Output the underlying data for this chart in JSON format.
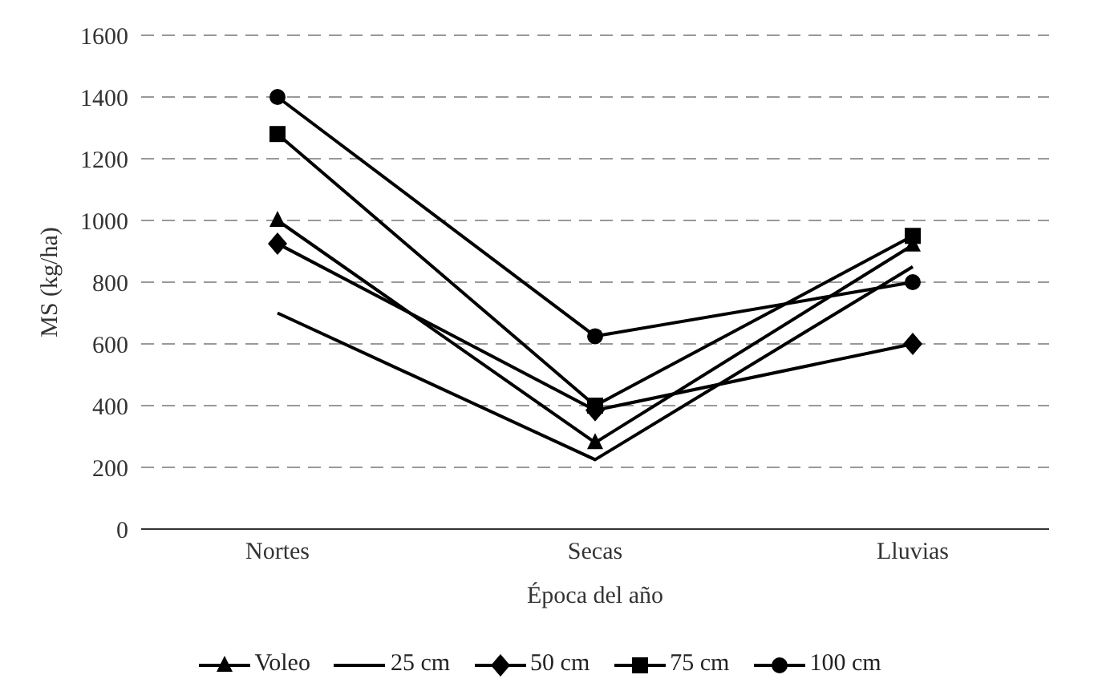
{
  "chart_data": {
    "type": "line",
    "xlabel": "Época del año",
    "ylabel": "MS (kg/ha)",
    "categories": [
      "Nortes",
      "Secas",
      "Lluvias"
    ],
    "ylim": [
      0,
      1600
    ],
    "yticks": [
      0,
      200,
      400,
      600,
      800,
      1000,
      1200,
      1400,
      1600
    ],
    "grid": "y",
    "legend": "bottom",
    "line_style": "solid",
    "series": [
      {
        "name": "Voleo",
        "color": "#000000",
        "marker": "triangle",
        "values": [
          1000,
          280,
          920
        ]
      },
      {
        "name": "25 cm",
        "color": "#000000",
        "marker": "none",
        "values": [
          700,
          225,
          850
        ]
      },
      {
        "name": "50 cm",
        "color": "#000000",
        "marker": "diamond",
        "values": [
          925,
          385,
          600
        ]
      },
      {
        "name": "75 cm",
        "color": "#000000",
        "marker": "square",
        "values": [
          1280,
          400,
          950
        ]
      },
      {
        "name": "100 cm",
        "color": "#000000",
        "marker": "circle",
        "values": [
          1400,
          625,
          800
        ]
      }
    ]
  }
}
